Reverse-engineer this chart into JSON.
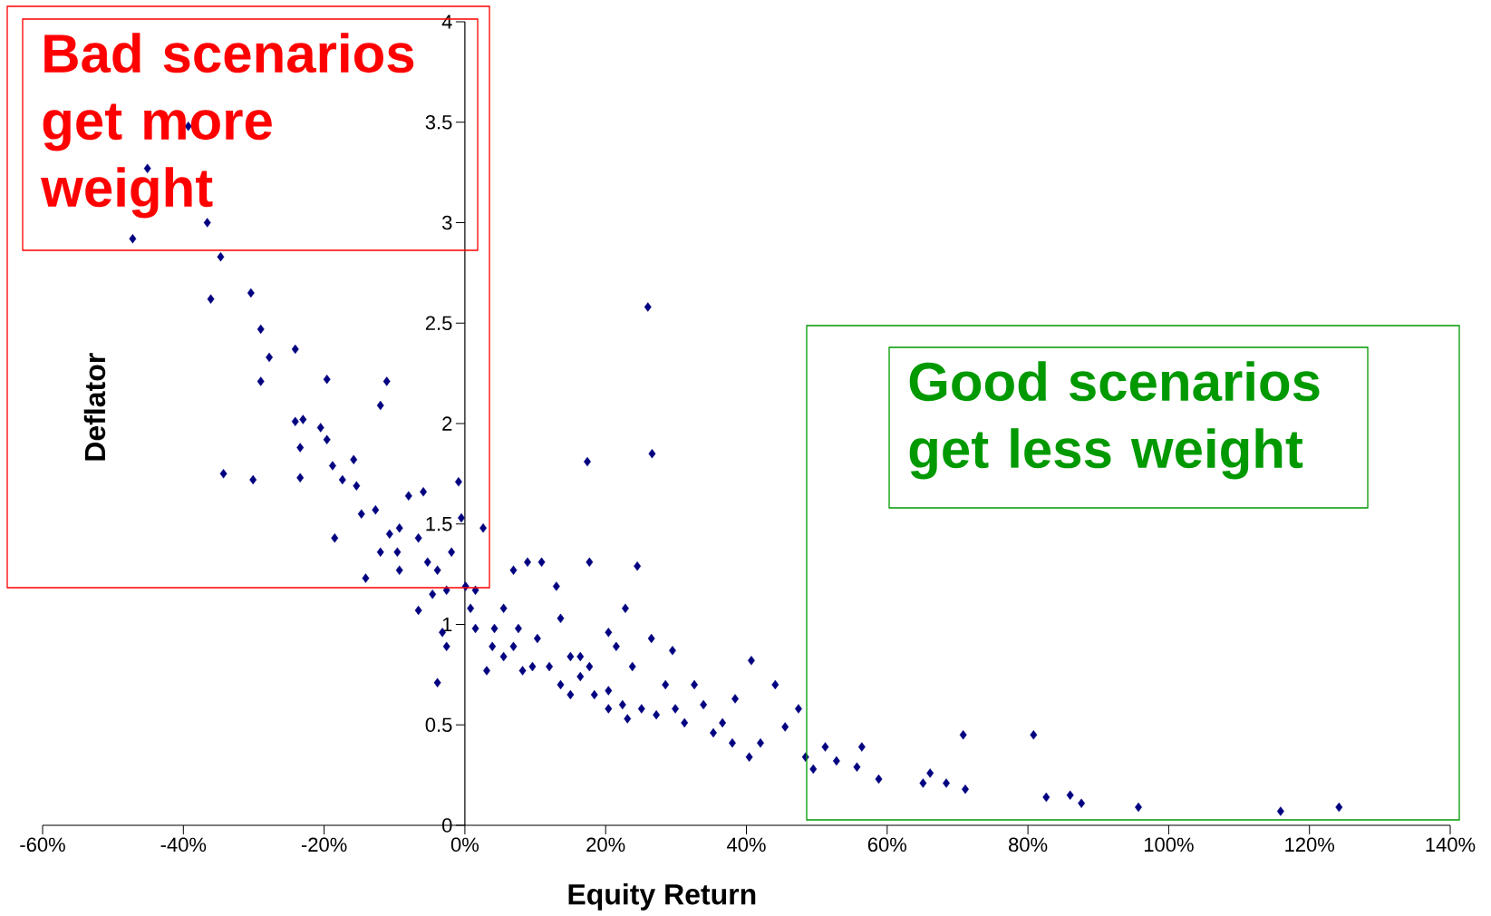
{
  "chart_data": {
    "type": "scatter",
    "xlabel": "Equity Return",
    "ylabel": "Deflator",
    "color": "#000080",
    "marker": "diamond",
    "x": [
      -47.2,
      -45.1,
      -39.3,
      -36.6,
      -36.1,
      -34.7,
      -30.4,
      -34.3,
      -30.1,
      -29.0,
      -27.8,
      -29.0,
      -24.1,
      -24.1,
      -23.4,
      -23.4,
      -23.0,
      -19.6,
      -20.5,
      -19.6,
      -18.8,
      -17.4,
      -15.8,
      -15.4,
      -14.7,
      -18.5,
      -14.1,
      -12.7,
      -12.0,
      -11.1,
      -10.7,
      -9.6,
      -8.0,
      -5.9,
      -9.3,
      -6.6,
      -5.3,
      -3.9,
      -6.6,
      -2.6,
      -0.9,
      -0.5,
      -1.9,
      -3.2,
      -2.6,
      -3.9,
      0.1,
      0.8,
      2.6,
      1.5,
      3.1,
      3.9,
      5.5,
      6.9,
      7.6,
      8.2,
      8.9,
      10.3,
      10.9,
      12.0,
      13.0,
      13.6,
      15.0,
      16.4,
      17.7,
      17.4,
      18.4,
      20.4,
      20.4,
      21.5,
      22.4,
      22.8,
      23.8,
      24.5,
      26.0,
      26.6,
      26.5,
      27.2,
      28.5,
      29.5,
      29.9,
      31.2,
      32.6,
      33.9,
      35.3,
      36.6,
      38.4,
      38.0,
      40.4,
      40.7,
      42.0,
      44.1,
      45.5,
      47.4,
      48.4,
      49.5,
      51.2,
      52.8,
      55.7,
      56.4,
      58.8,
      65.1,
      66.1,
      68.4,
      71.1,
      70.8,
      80.8,
      82.6,
      86.0,
      87.6,
      95.7,
      115.9,
      124.2,
      4.2,
      5.5,
      9.6,
      13.6,
      16.4,
      20.4,
      25.1,
      15.0,
      1.5,
      6.9,
      17.7,
      23.1,
      -9.3,
      -12.0,
      -4.6
    ],
    "values": [
      2.92,
      3.27,
      3.48,
      3.0,
      2.62,
      2.83,
      2.65,
      1.75,
      1.72,
      2.47,
      2.33,
      2.21,
      2.37,
      2.01,
      1.88,
      1.73,
      2.02,
      2.22,
      1.98,
      1.92,
      1.79,
      1.72,
      1.82,
      1.69,
      1.55,
      1.43,
      1.23,
      1.57,
      2.09,
      2.21,
      1.45,
      1.36,
      1.64,
      1.66,
      1.48,
      1.43,
      1.31,
      1.27,
      1.07,
      1.17,
      1.71,
      1.53,
      1.36,
      0.96,
      0.89,
      0.71,
      1.19,
      1.08,
      1.48,
      0.98,
      0.77,
      0.89,
      1.08,
      1.27,
      0.98,
      0.77,
      1.31,
      0.93,
      1.31,
      0.79,
      1.19,
      1.03,
      0.84,
      0.74,
      1.31,
      1.81,
      0.65,
      0.96,
      0.67,
      0.89,
      0.6,
      1.08,
      0.79,
      1.29,
      2.58,
      1.85,
      0.93,
      0.55,
      0.7,
      0.87,
      0.58,
      0.51,
      0.7,
      0.6,
      0.46,
      0.51,
      0.63,
      0.41,
      0.34,
      0.82,
      0.41,
      0.7,
      0.49,
      0.58,
      0.34,
      0.28,
      0.39,
      0.32,
      0.29,
      0.39,
      0.23,
      0.21,
      0.26,
      0.21,
      0.18,
      0.45,
      0.45,
      0.14,
      0.15,
      0.11,
      0.09,
      0.07,
      0.09,
      0.98,
      0.84,
      0.79,
      0.7,
      0.84,
      0.58,
      0.58,
      0.65,
      1.17,
      0.89,
      0.79,
      0.53,
      1.27,
      1.36,
      1.15
    ],
    "xlim": [
      -60,
      140
    ],
    "ylim": [
      0,
      4
    ],
    "xticks": [
      {
        "value": -60,
        "label": "-60%"
      },
      {
        "value": -40,
        "label": "-40%"
      },
      {
        "value": -20,
        "label": "-20%"
      },
      {
        "value": 0,
        "label": "0%"
      },
      {
        "value": 20,
        "label": "20%"
      },
      {
        "value": 40,
        "label": "40%"
      },
      {
        "value": 60,
        "label": "60%"
      },
      {
        "value": 80,
        "label": "80%"
      },
      {
        "value": 100,
        "label": "100%"
      },
      {
        "value": 120,
        "label": "120%"
      },
      {
        "value": 140,
        "label": "140%"
      }
    ],
    "yticks": [
      0,
      0.5,
      1,
      1.5,
      2,
      2.5,
      3,
      3.5,
      4
    ],
    "annotations": [
      "Bad scenarios get more weight",
      "Good scenarios get less weight"
    ]
  }
}
